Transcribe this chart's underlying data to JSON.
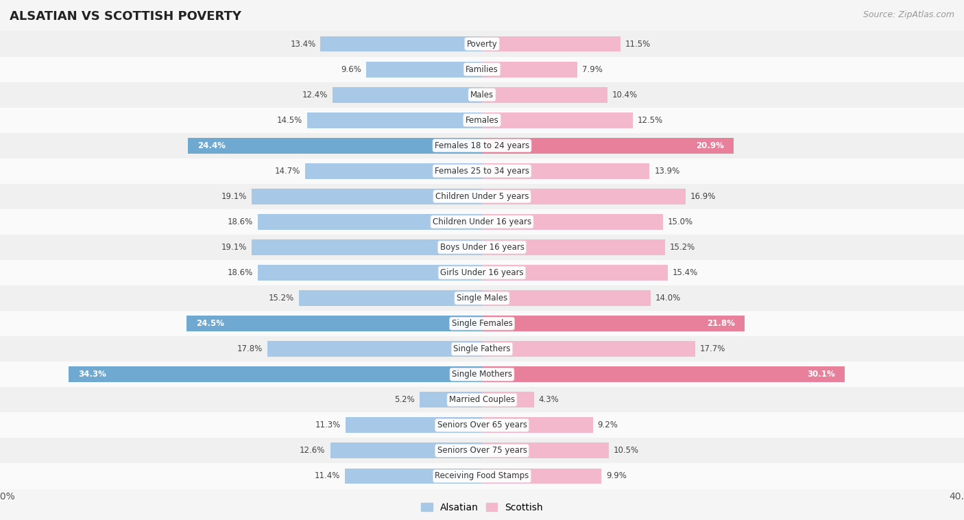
{
  "title": "ALSATIAN VS SCOTTISH POVERTY",
  "source": "Source: ZipAtlas.com",
  "categories": [
    "Poverty",
    "Families",
    "Males",
    "Females",
    "Females 18 to 24 years",
    "Females 25 to 34 years",
    "Children Under 5 years",
    "Children Under 16 years",
    "Boys Under 16 years",
    "Girls Under 16 years",
    "Single Males",
    "Single Females",
    "Single Fathers",
    "Single Mothers",
    "Married Couples",
    "Seniors Over 65 years",
    "Seniors Over 75 years",
    "Receiving Food Stamps"
  ],
  "alsatian": [
    13.4,
    9.6,
    12.4,
    14.5,
    24.4,
    14.7,
    19.1,
    18.6,
    19.1,
    18.6,
    15.2,
    24.5,
    17.8,
    34.3,
    5.2,
    11.3,
    12.6,
    11.4
  ],
  "scottish": [
    11.5,
    7.9,
    10.4,
    12.5,
    20.9,
    13.9,
    16.9,
    15.0,
    15.2,
    15.4,
    14.0,
    21.8,
    17.7,
    30.1,
    4.3,
    9.2,
    10.5,
    9.9
  ],
  "alsatian_color_normal": "#a8c8e8",
  "scottish_color_normal": "#f4b8cc",
  "alsatian_color_highlight": "#6fa8d0",
  "scottish_color_highlight": "#e8809c",
  "row_bg_colors": [
    "#f0f0f0",
    "#fafafa"
  ],
  "background_color": "#f5f5f5",
  "max_val": 40.0,
  "legend_alsatian": "Alsatian",
  "legend_scottish": "Scottish",
  "highlight_threshold": 24.0
}
